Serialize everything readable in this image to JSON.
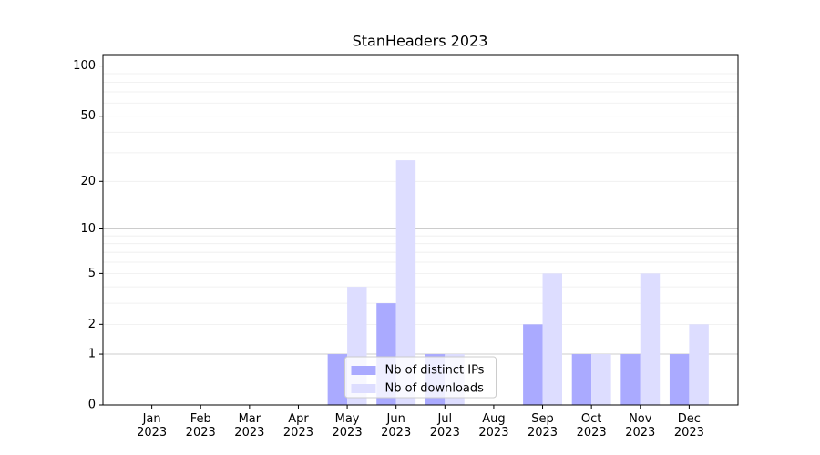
{
  "chart_data": {
    "type": "bar",
    "title": "StanHeaders 2023",
    "categories": [
      "Jan\n2023",
      "Feb\n2023",
      "Mar\n2023",
      "Apr\n2023",
      "May\n2023",
      "Jun\n2023",
      "Jul\n2023",
      "Aug\n2023",
      "Sep\n2023",
      "Oct\n2023",
      "Nov\n2023",
      "Dec\n2023"
    ],
    "series": [
      {
        "name": "Nb of distinct IPs",
        "color": "#aaaaff",
        "values": [
          0,
          0,
          0,
          0,
          1,
          3,
          1,
          0,
          2,
          1,
          1,
          1
        ]
      },
      {
        "name": "Nb of downloads",
        "color": "#ddddff",
        "values": [
          0,
          0,
          0,
          0,
          4,
          27,
          1,
          0,
          5,
          1,
          5,
          2
        ]
      }
    ],
    "yscale": "log1p",
    "ylim": [
      0,
      117
    ],
    "yticks": [
      0,
      1,
      2,
      5,
      10,
      20,
      50,
      100
    ],
    "yminorticks": [
      2,
      3,
      4,
      5,
      6,
      7,
      8,
      9,
      20,
      30,
      40,
      50,
      60,
      70,
      80,
      90
    ],
    "grid": true,
    "legend": "lower center"
  }
}
